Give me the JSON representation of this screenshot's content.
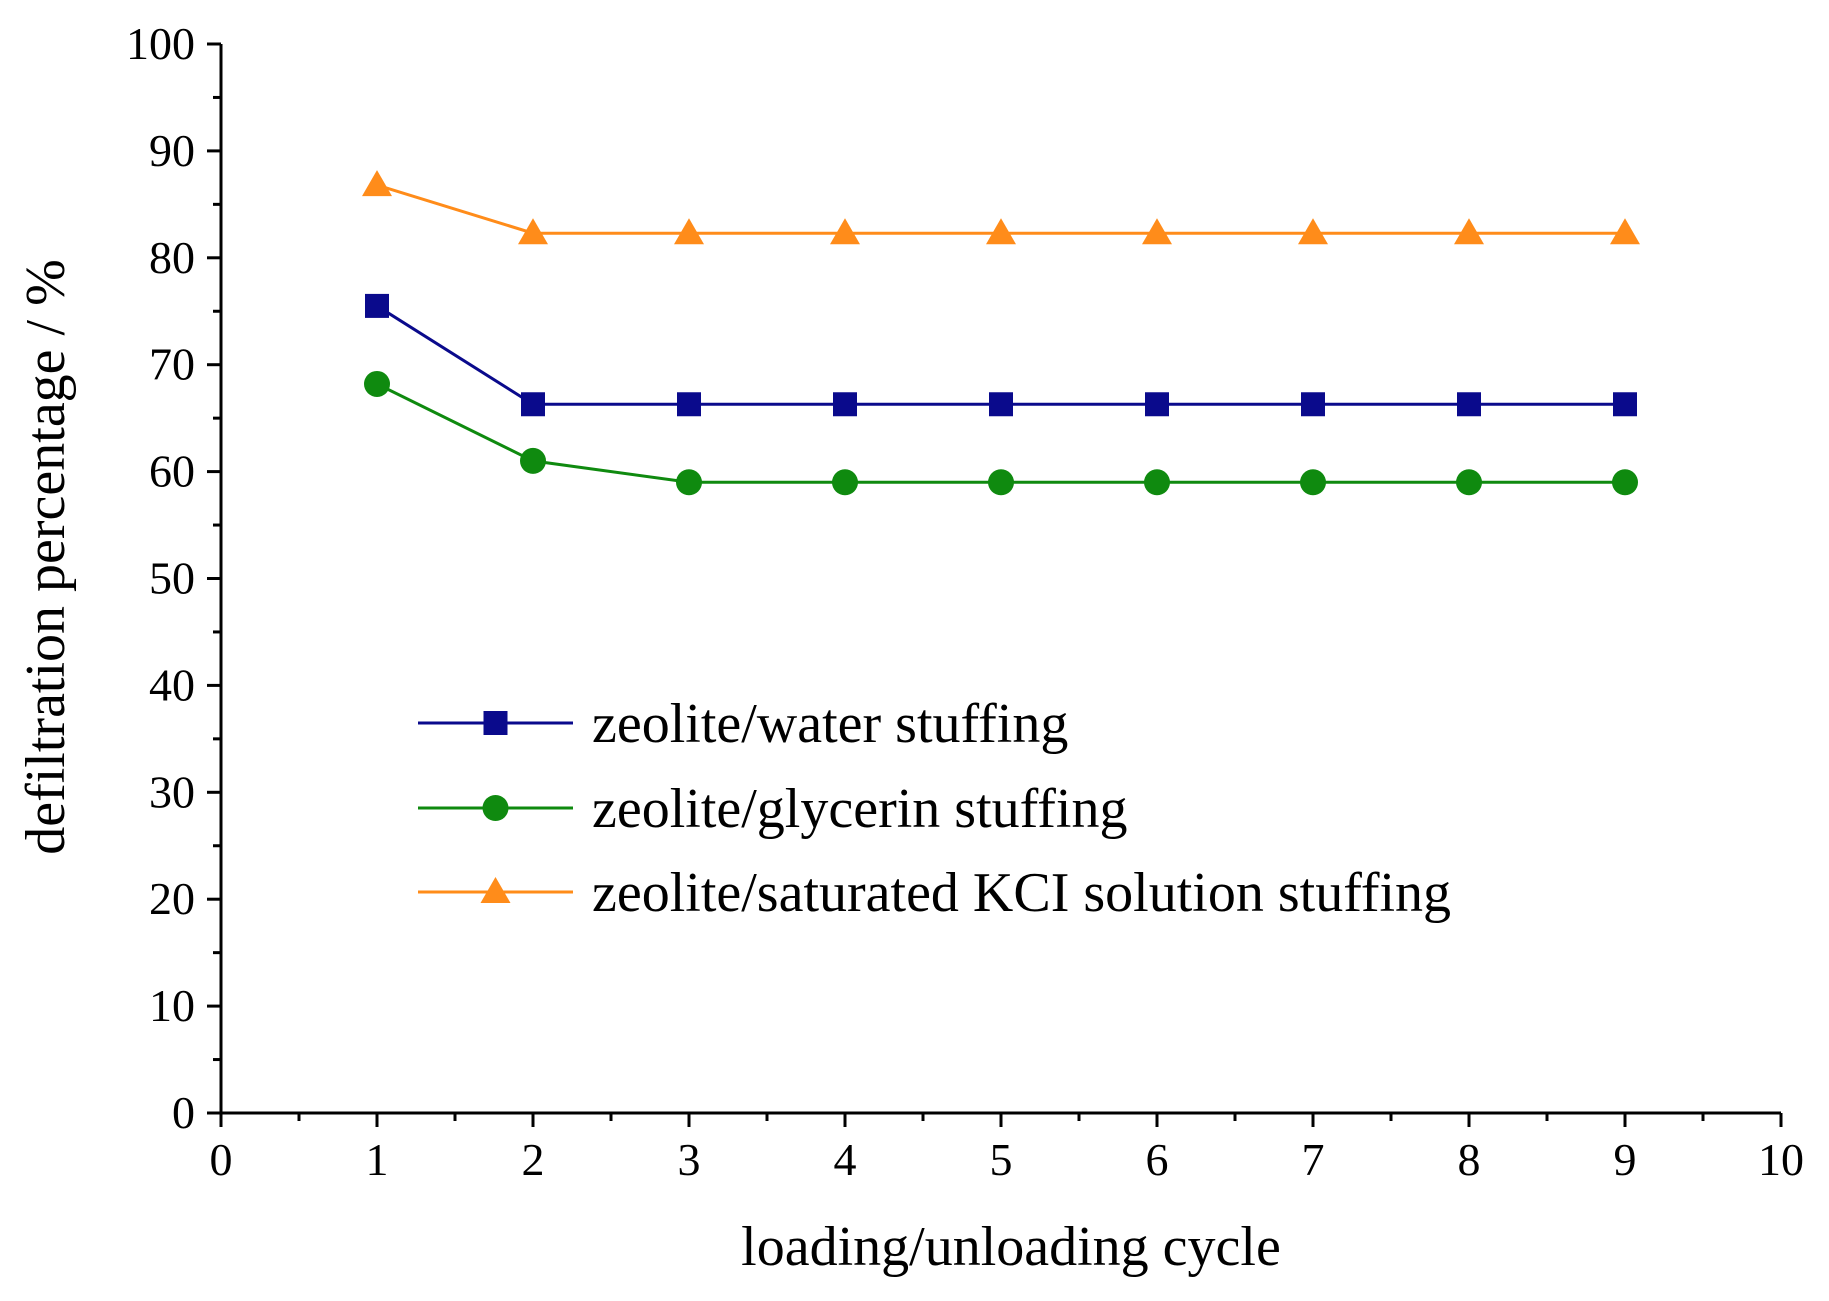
{
  "chart_data": {
    "type": "line",
    "title": "",
    "xlabel": "loading/unloading cycle",
    "ylabel": "defiltration percentage / %",
    "xlim": [
      0,
      10
    ],
    "ylim": [
      0,
      100
    ],
    "x_ticks": [
      0,
      1,
      2,
      3,
      4,
      5,
      6,
      7,
      8,
      9,
      10
    ],
    "y_ticks": [
      0,
      10,
      20,
      30,
      40,
      50,
      60,
      70,
      80,
      90,
      100
    ],
    "grid": false,
    "legend_position": "center-left",
    "x": [
      1,
      2,
      3,
      4,
      5,
      6,
      7,
      8,
      9
    ],
    "series": [
      {
        "name": "zeolite/water stuffing",
        "marker": "square",
        "color": "#0a0a8c",
        "values": [
          75.5,
          66.3,
          66.3,
          66.3,
          66.3,
          66.3,
          66.3,
          66.3,
          66.3
        ]
      },
      {
        "name": "zeolite/glycerin stuffing",
        "marker": "circle",
        "color": "#0f8a0f",
        "values": [
          68.2,
          61.0,
          59.0,
          59.0,
          59.0,
          59.0,
          59.0,
          59.0,
          59.0
        ]
      },
      {
        "name": "zeolite/saturated KCI solution stuffing",
        "marker": "triangle",
        "color": "#ff8c1a",
        "values": [
          86.8,
          82.3,
          82.3,
          82.3,
          82.3,
          82.3,
          82.3,
          82.3,
          82.3
        ]
      }
    ]
  }
}
